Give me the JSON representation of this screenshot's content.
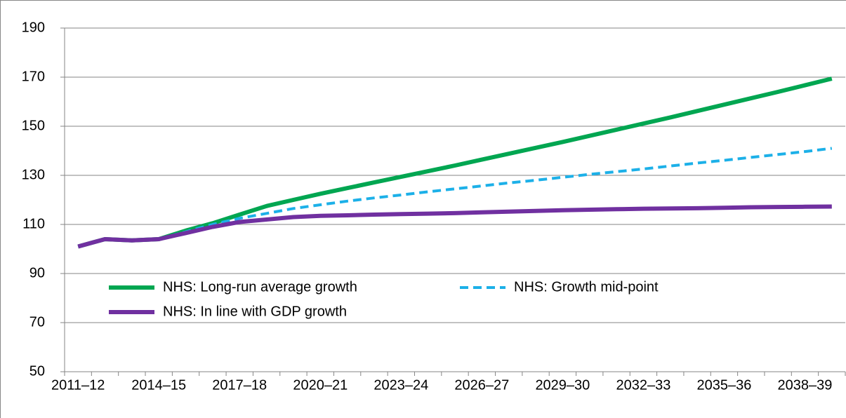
{
  "chart_data": {
    "type": "line",
    "categories": [
      "2011–12",
      null,
      null,
      "2014–15",
      null,
      null,
      "2017–18",
      null,
      null,
      "2020–21",
      null,
      null,
      "2023–24",
      null,
      null,
      "2026–27",
      null,
      null,
      "2029–30",
      null,
      null,
      "2032–33",
      null,
      null,
      "2035–36",
      null,
      null,
      "2038–39",
      null
    ],
    "series": [
      {
        "name": "NHS: Long-run average growth",
        "color": "#00a651",
        "dash": false,
        "values": [
          101,
          104,
          103.5,
          104,
          107.5,
          110.5,
          114,
          117.5,
          120,
          122.5,
          124.8,
          127.1,
          129.4,
          131.7,
          134,
          136.4,
          138.8,
          141.2,
          143.6,
          146.1,
          148.6,
          151.1,
          153.6,
          156.2,
          158.8,
          161.4,
          164,
          166.7,
          169.4
        ]
      },
      {
        "name": "NHS: Growth mid-point",
        "color": "#1cb0e8",
        "dash": true,
        "values": [
          101,
          104,
          103.5,
          104,
          107,
          110,
          112.5,
          114.5,
          116.5,
          118,
          119.5,
          120.8,
          122,
          123.3,
          124.5,
          125.7,
          126.9,
          128,
          129.2,
          130.4,
          131.5,
          132.6,
          133.8,
          135,
          136.1,
          137.3,
          138.5,
          139.7,
          141
        ]
      },
      {
        "name": "NHS: In line with GDP growth",
        "color": "#7030a0",
        "dash": false,
        "values": [
          101,
          104,
          103.5,
          104,
          106.5,
          109,
          111,
          112,
          113,
          113.5,
          113.7,
          114,
          114.2,
          114.4,
          114.6,
          114.9,
          115.2,
          115.5,
          115.8,
          116,
          116.2,
          116.4,
          116.5,
          116.6,
          116.8,
          117,
          117.1,
          117.2,
          117.3
        ]
      }
    ],
    "ylim": [
      50,
      190
    ],
    "yticks": [
      50,
      70,
      90,
      110,
      130,
      150,
      170,
      190
    ],
    "grid": true
  }
}
